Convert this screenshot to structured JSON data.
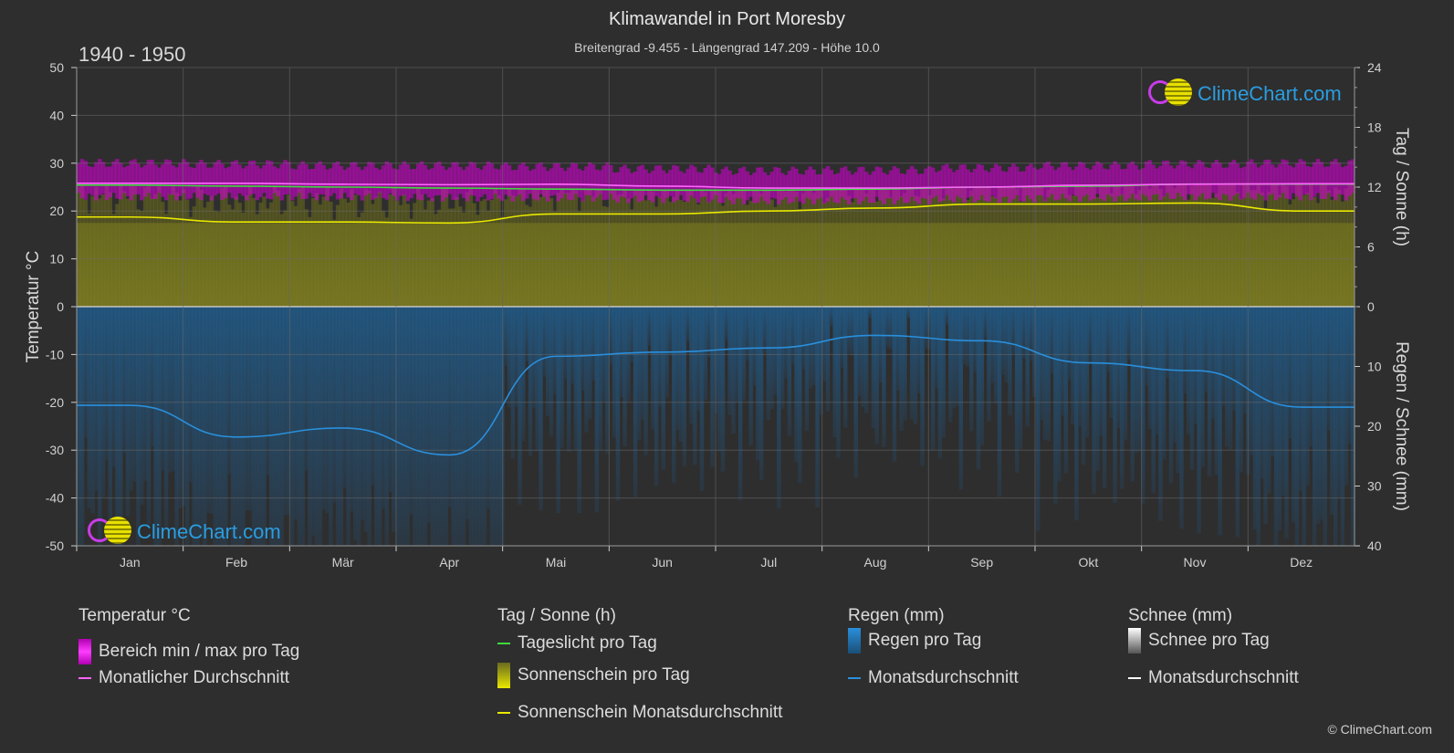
{
  "header": {
    "title": "Klimawandel in Port Moresby",
    "subtitle": "Breitengrad -9.455 - Längengrad 147.209 - Höhe 10.0",
    "period": "1940 - 1950"
  },
  "chart_data": {
    "type": "area",
    "title": "Klimawandel in Port Moresby",
    "months": [
      "Jan",
      "Feb",
      "Mär",
      "Apr",
      "Mai",
      "Jun",
      "Jul",
      "Aug",
      "Sep",
      "Okt",
      "Nov",
      "Dez"
    ],
    "axes": {
      "left": {
        "label": "Temperatur °C",
        "min": -50,
        "max": 50,
        "ticks": [
          "50",
          "40",
          "30",
          "20",
          "10",
          "0",
          "-10",
          "-20",
          "-30",
          "-40",
          "-50"
        ]
      },
      "right_top": {
        "label": "Tag / Sonne (h)",
        "min": 0,
        "max": 24,
        "ticks": [
          "24",
          "18",
          "12",
          "6",
          "0"
        ]
      },
      "right_bottom": {
        "label": "Regen / Schnee (mm)",
        "min": 0,
        "max": 40,
        "ticks": [
          "0",
          "10",
          "20",
          "30",
          "40"
        ]
      }
    },
    "grid": true,
    "series": [
      {
        "name": "Tageslicht pro Tag",
        "unit": "h",
        "color": "#3fd93f",
        "values": [
          12.2,
          12.1,
          12.0,
          11.9,
          11.8,
          11.7,
          11.7,
          11.8,
          12.0,
          12.1,
          12.3,
          12.3
        ]
      },
      {
        "name": "Sonnenschein Monatsdurchschnitt",
        "unit": "h",
        "color": "#e8e800",
        "values": [
          9.0,
          8.5,
          8.5,
          8.4,
          9.3,
          9.3,
          9.6,
          9.9,
          10.3,
          10.3,
          10.4,
          9.6
        ]
      },
      {
        "name": "Monatlicher Durchschnitt",
        "unit": "°C",
        "color": "#ff66ff",
        "values": [
          25.8,
          25.8,
          25.6,
          25.5,
          25.6,
          25.2,
          24.8,
          24.8,
          25.0,
          25.4,
          25.6,
          25.7
        ]
      },
      {
        "name": "Bereich min / max pro Tag",
        "unit": "°C",
        "color": "#d400d4",
        "min": [
          23.0,
          23.0,
          23.0,
          22.8,
          22.8,
          22.5,
          22.2,
          22.2,
          22.5,
          22.8,
          23.0,
          23.0
        ],
        "max": [
          30.0,
          29.8,
          29.5,
          29.5,
          29.3,
          28.8,
          28.4,
          28.5,
          29.0,
          29.5,
          29.8,
          30.0
        ]
      },
      {
        "name": "Regen Monatsdurchschnitt",
        "unit": "mm",
        "color": "#2a8fdc",
        "values": [
          16.5,
          21.8,
          20.3,
          24.8,
          8.3,
          7.6,
          6.9,
          4.8,
          5.7,
          9.4,
          10.7,
          16.8
        ]
      }
    ]
  },
  "legend": {
    "temp": {
      "head": "Temperatur °C",
      "range": "Bereich min / max pro Tag",
      "avg": "Monatlicher Durchschnitt"
    },
    "sun": {
      "head": "Tag / Sonne (h)",
      "daylight": "Tageslicht pro Tag",
      "sunshine": "Sonnenschein pro Tag",
      "sunavg": "Sonnenschein Monatsdurchschnitt"
    },
    "rain": {
      "head": "Regen (mm)",
      "day": "Regen pro Tag",
      "avg": "Monatsdurchschnitt"
    },
    "snow": {
      "head": "Schnee (mm)",
      "day": "Schnee pro Tag",
      "avg": "Monatsdurchschnitt"
    }
  },
  "logo": {
    "text": "ClimeChart.com"
  },
  "copyright": "© ClimeChart.com",
  "colors": {
    "background": "#2e2e2e",
    "temp_range": "#d400d4",
    "temp_avg": "#ff66ff",
    "daylight": "#3fd93f",
    "sunshine": "#e8e800",
    "rain": "#2a8fdc",
    "snow": "#ffffff"
  }
}
